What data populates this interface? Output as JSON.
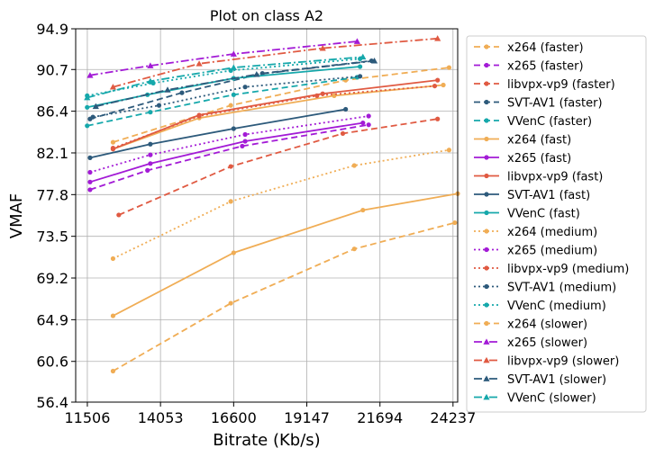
{
  "chart_data": {
    "type": "line",
    "title": "Plot on class A2",
    "xlabel": "Bitrate (Kb/s)",
    "ylabel": "VMAF",
    "xlim": [
      11100,
      24400
    ],
    "ylim": [
      56.4,
      94.9
    ],
    "xticks": [
      11506,
      14053,
      16600,
      19147,
      21694,
      24237
    ],
    "yticks": [
      56.4,
      60.6,
      64.9,
      69.2,
      73.5,
      77.8,
      82.1,
      86.4,
      90.7,
      94.9
    ],
    "grid": true,
    "legend_position": "right-outside",
    "series": [
      {
        "name": "x264 (faster)",
        "color": "#f0ad55",
        "dash": "dash",
        "marker": "circle",
        "points": [
          [
            12400,
            83.2
          ],
          [
            16500,
            87.0
          ],
          [
            20500,
            89.6
          ],
          [
            24100,
            90.9
          ]
        ]
      },
      {
        "name": "x265 (faster)",
        "color": "#a31bd6",
        "dash": "dash",
        "marker": "circle",
        "points": [
          [
            11600,
            78.3
          ],
          [
            13600,
            80.3
          ],
          [
            16900,
            82.8
          ],
          [
            21300,
            85.0
          ]
        ]
      },
      {
        "name": "libvpx-vp9 (faster)",
        "color": "#e05a42",
        "dash": "dash",
        "marker": "circle",
        "points": [
          [
            12600,
            75.7
          ],
          [
            16500,
            80.7
          ],
          [
            20400,
            84.1
          ],
          [
            23700,
            85.6
          ]
        ]
      },
      {
        "name": "SVT-AV1 (faster)",
        "color": "#2d5a7b",
        "dash": "dash",
        "marker": "circle",
        "points": [
          [
            11600,
            85.6
          ],
          [
            14800,
            88.3
          ],
          [
            17600,
            90.3
          ],
          [
            21400,
            91.6
          ]
        ]
      },
      {
        "name": "VVenC (faster)",
        "color": "#16a8ab",
        "dash": "dash",
        "marker": "circle",
        "points": [
          [
            11500,
            84.9
          ],
          [
            13700,
            86.3
          ],
          [
            16600,
            88.1
          ],
          [
            20900,
            89.9
          ]
        ]
      },
      {
        "name": "x264 (fast)",
        "color": "#f0ad55",
        "dash": "solid",
        "marker": "circle",
        "points": [
          [
            12400,
            82.5
          ],
          [
            15400,
            85.7
          ],
          [
            20100,
            88.0
          ],
          [
            23900,
            89.1
          ]
        ]
      },
      {
        "name": "x265 (fast)",
        "color": "#a31bd6",
        "dash": "solid",
        "marker": "circle",
        "points": [
          [
            11600,
            79.1
          ],
          [
            13700,
            81.0
          ],
          [
            17000,
            83.3
          ],
          [
            21100,
            85.2
          ]
        ]
      },
      {
        "name": "libvpx-vp9 (fast)",
        "color": "#e05a42",
        "dash": "solid",
        "marker": "circle",
        "points": [
          [
            12400,
            82.5
          ],
          [
            15400,
            86.0
          ],
          [
            19700,
            88.2
          ],
          [
            23700,
            89.6
          ]
        ]
      },
      {
        "name": "SVT-AV1 (fast)",
        "color": "#2d5a7b",
        "dash": "solid",
        "marker": "circle",
        "points": [
          [
            11600,
            81.6
          ],
          [
            13700,
            83.0
          ],
          [
            16600,
            84.6
          ],
          [
            20500,
            86.6
          ]
        ]
      },
      {
        "name": "VVenC (fast)",
        "color": "#16a8ab",
        "dash": "solid",
        "marker": "circle",
        "points": [
          [
            11500,
            86.8
          ],
          [
            13600,
            88.1
          ],
          [
            16600,
            89.8
          ],
          [
            21000,
            91.0
          ]
        ]
      },
      {
        "name": "x264 (medium)",
        "color": "#f0ad55",
        "dash": "dot",
        "marker": "circle",
        "points": [
          [
            12400,
            71.2
          ],
          [
            16500,
            77.1
          ],
          [
            20800,
            80.8
          ],
          [
            24100,
            82.4
          ]
        ]
      },
      {
        "name": "x265 (medium)",
        "color": "#a31bd6",
        "dash": "dot",
        "marker": "circle",
        "points": [
          [
            11600,
            80.1
          ],
          [
            13700,
            81.9
          ],
          [
            17000,
            84.0
          ],
          [
            21300,
            85.9
          ]
        ]
      },
      {
        "name": "libvpx-vp9 (medium)",
        "color": "#e05a42",
        "dash": "dot",
        "marker": "circle",
        "points": [
          [
            12400,
            82.6
          ],
          [
            15400,
            85.9
          ],
          [
            19500,
            88.0
          ],
          [
            23600,
            89.0
          ]
        ]
      },
      {
        "name": "SVT-AV1 (medium)",
        "color": "#2d5a7b",
        "dash": "dot",
        "marker": "circle",
        "points": [
          [
            11700,
            85.8
          ],
          [
            14000,
            87.0
          ],
          [
            17000,
            88.9
          ],
          [
            21000,
            90.0
          ]
        ]
      },
      {
        "name": "VVenC (medium)",
        "color": "#16a8ab",
        "dash": "dot",
        "marker": "circle",
        "points": [
          [
            11500,
            88.0
          ],
          [
            13800,
            89.3
          ],
          [
            16500,
            90.6
          ],
          [
            21000,
            91.8
          ]
        ]
      },
      {
        "name": "x264 (slower)",
        "color": "#f0ad55",
        "dash": "dash",
        "marker": "circle",
        "points": [
          [
            12400,
            59.6
          ],
          [
            16500,
            66.6
          ],
          [
            20800,
            72.2
          ],
          [
            24300,
            74.9
          ]
        ]
      },
      {
        "name": "x265 (slower)",
        "color": "#a31bd6",
        "dash": "dashdot",
        "marker": "triangle",
        "points": [
          [
            11600,
            90.1
          ],
          [
            13700,
            91.1
          ],
          [
            16600,
            92.3
          ],
          [
            20900,
            93.6
          ]
        ]
      },
      {
        "name": "libvpx-vp9 (slower)",
        "color": "#e05a42",
        "dash": "dashdot",
        "marker": "triangle",
        "points": [
          [
            12400,
            88.9
          ],
          [
            15400,
            91.3
          ],
          [
            19700,
            92.9
          ],
          [
            23700,
            93.9
          ]
        ]
      },
      {
        "name": "SVT-AV1 (slower)",
        "color": "#2d5a7b",
        "dash": "dashdot",
        "marker": "triangle",
        "points": [
          [
            11800,
            86.9
          ],
          [
            14300,
            88.6
          ],
          [
            17400,
            90.2
          ],
          [
            21500,
            91.6
          ]
        ]
      },
      {
        "name": "VVenC (slower)",
        "color": "#16a8ab",
        "dash": "dashdot",
        "marker": "triangle",
        "points": [
          [
            11500,
            87.8
          ],
          [
            13700,
            89.5
          ],
          [
            16600,
            90.9
          ],
          [
            21100,
            92.0
          ]
        ]
      },
      {
        "name": "x264 (fast)",
        "color": "#f0ad55",
        "dash": "solid",
        "marker": "circle",
        "points": [
          [
            12400,
            65.3
          ],
          [
            16600,
            71.8
          ],
          [
            21100,
            76.2
          ],
          [
            24400,
            77.9
          ]
        ]
      }
    ]
  }
}
